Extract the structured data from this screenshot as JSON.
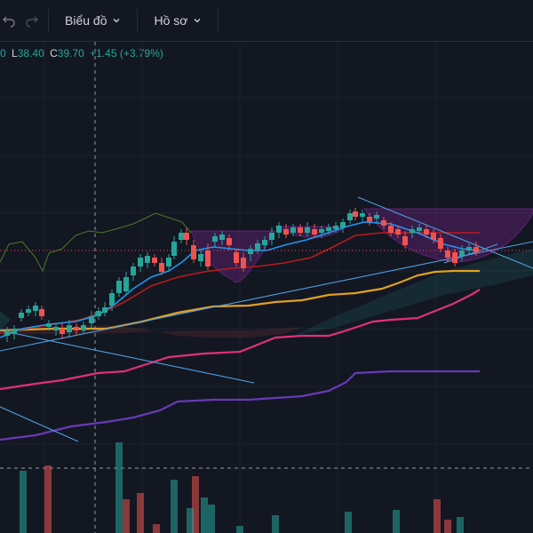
{
  "toolbar": {
    "menu_chart": "Biểu đồ",
    "menu_profile": "Hồ sơ"
  },
  "legend": {
    "cut_value": "0",
    "l_label": "L",
    "l_value": "38.40",
    "c_label": "C",
    "c_value": "39.70",
    "change": "+1.45 (+3.79%)"
  },
  "colors": {
    "background": "#131722",
    "up": "#26a69a",
    "down": "#ef5350",
    "ma_fast": "#2196f3",
    "ma_mid": "#b71c1c",
    "ma_gold": "#e0a020",
    "ma_pink": "#e0307a",
    "ma_purple": "#673ab7",
    "lagging": "#4a7a2a"
  }
}
